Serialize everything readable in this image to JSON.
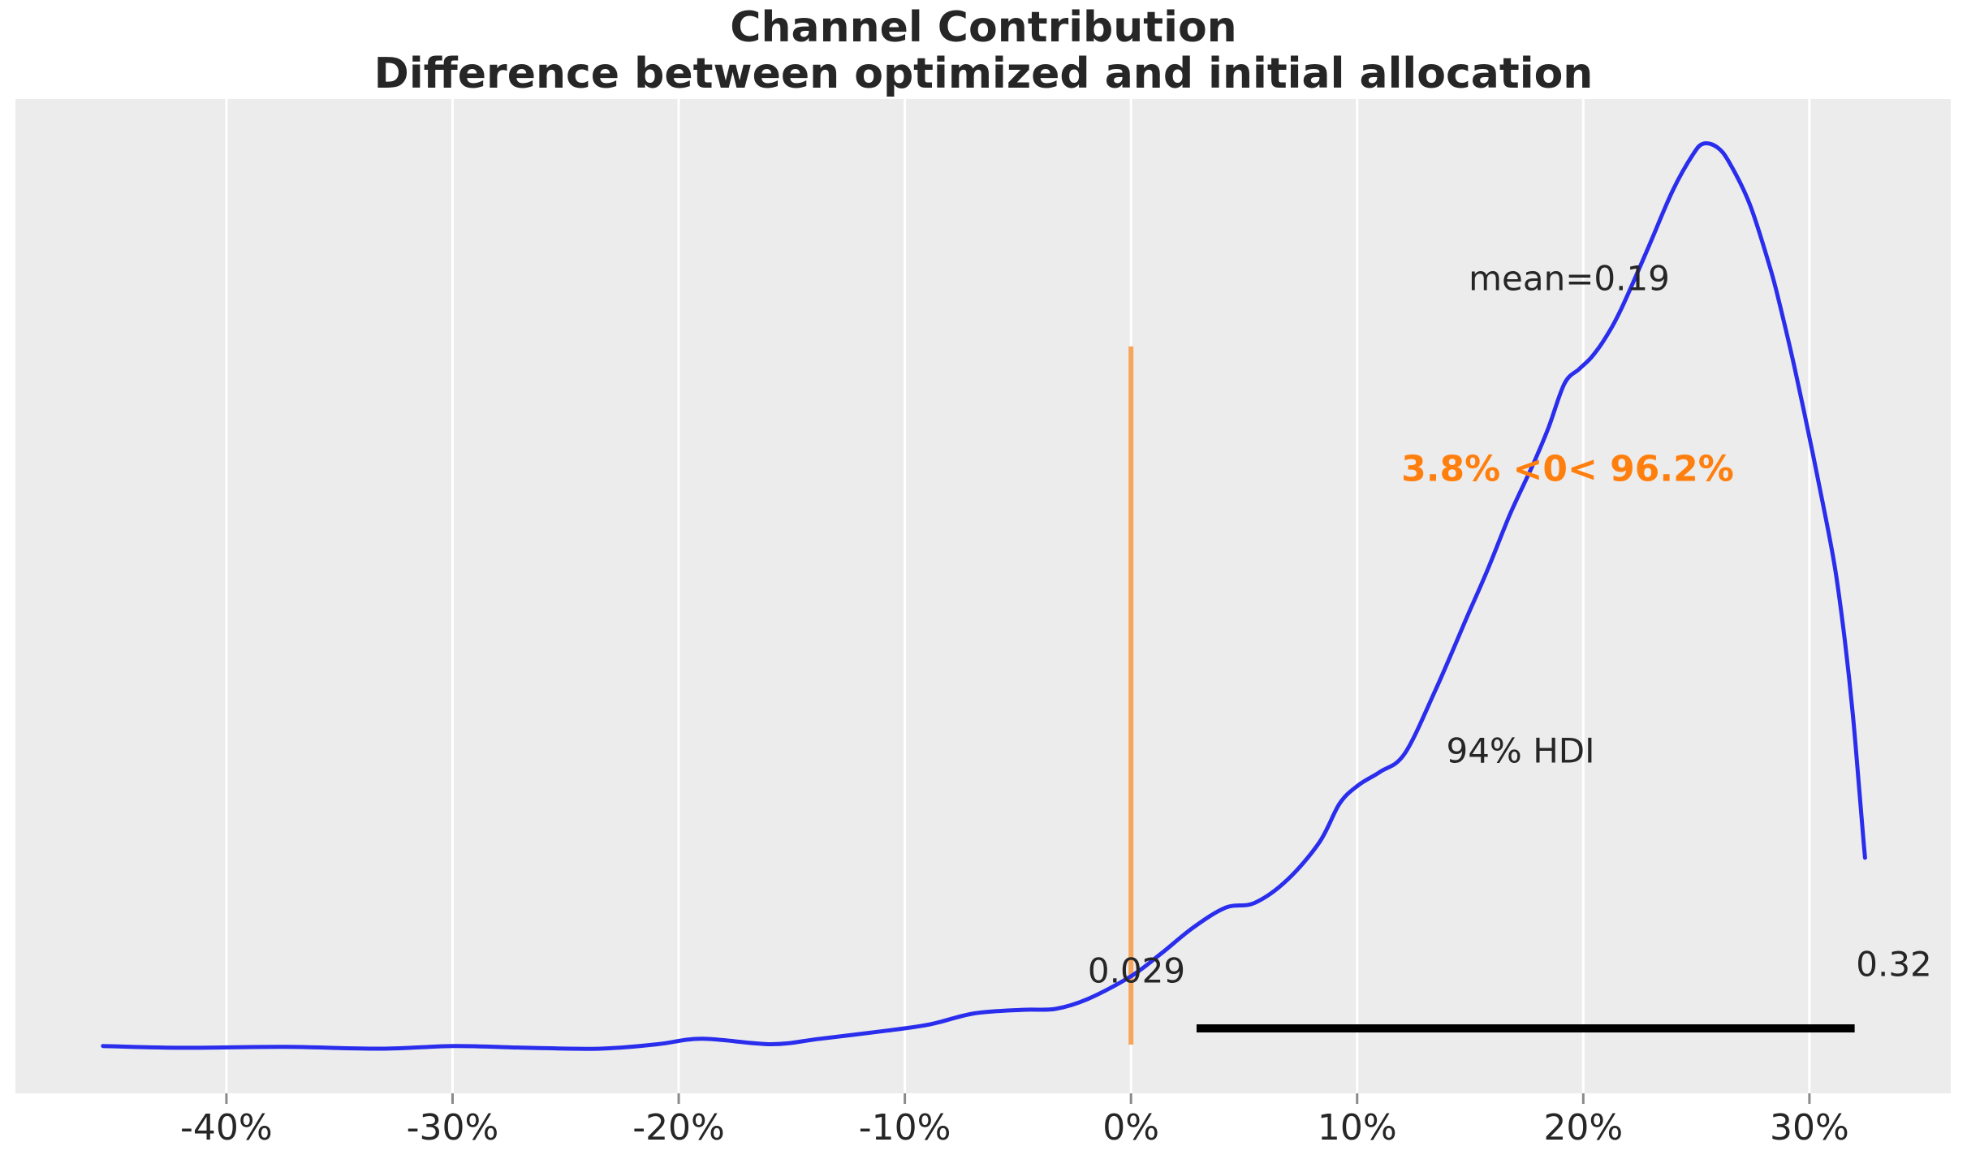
{
  "header": {
    "title": "Channel Contribution",
    "subtitle": "Difference between optimized and initial allocation"
  },
  "annotations": {
    "mean_label": "mean=0.19",
    "mean_value": 0.19,
    "ref_label": "3.8% <0< 96.2%",
    "prob_below_zero_pct": 3.8,
    "prob_above_zero_pct": 96.2,
    "ref_value": 0,
    "hdi_label": "94% HDI",
    "hdi_prob": 0.94,
    "hdi_lower": 0.029,
    "hdi_upper": 0.32,
    "hdi_lower_label": "0.029",
    "hdi_upper_label": "0.32"
  },
  "axis": {
    "ticks": [
      {
        "value": -40,
        "label": "-40%"
      },
      {
        "value": -30,
        "label": "-30%"
      },
      {
        "value": -20,
        "label": "-20%"
      },
      {
        "value": -10,
        "label": "-10%"
      },
      {
        "value": 0,
        "label": "0%"
      },
      {
        "value": 10,
        "label": "10%"
      },
      {
        "value": 20,
        "label": "20%"
      },
      {
        "value": 30,
        "label": "30%"
      }
    ]
  },
  "colors": {
    "plot_background": "#ececec",
    "grid": "#ffffff",
    "density_line": "#2a2eec",
    "reference_line": "#f8a55c",
    "reference_text": "#ff7f0e",
    "hdi_line": "#000000",
    "text": "#262626",
    "tick_mark": "#8a8a8a"
  },
  "chart_data": {
    "type": "area",
    "title": "Channel Contribution\nDifference between optimized and initial allocation",
    "xlabel": "",
    "ylabel": "",
    "legend": "none",
    "grid": "vertical-white-on-gray",
    "x_unit": "percent",
    "xlim_pct": [
      -49.33,
      36.25
    ],
    "ylim_density": [
      -0.0493,
      1.0493
    ],
    "x_tick_values_pct": [
      -40,
      -30,
      -20,
      -10,
      0,
      10,
      20,
      30
    ],
    "series": [
      {
        "name": "posterior density (KDE)",
        "x_pct": [
          -45.46,
          -42.12,
          -37.45,
          -33.14,
          -29.91,
          -26.68,
          -23.45,
          -20.93,
          -18.96,
          -15.91,
          -13.75,
          -10.77,
          -8.87,
          -6.93,
          -4.78,
          -3.34,
          -1.9,
          0.0,
          1.33,
          2.76,
          4.2,
          5.46,
          6.89,
          8.33,
          9.23,
          10.05,
          11.02,
          12.1,
          13.46,
          14.86,
          15.8,
          16.77,
          17.77,
          18.46,
          19.17,
          19.82,
          20.36,
          20.97,
          21.69,
          22.87,
          23.95,
          24.85,
          25.31,
          25.92,
          26.46,
          27.36,
          28.26,
          28.73,
          29.34,
          29.98,
          30.59,
          31.13,
          31.56,
          31.92,
          32.21,
          32.39,
          32.46
        ],
        "density_rel": [
          0.003,
          0.001,
          0.002,
          0.0,
          0.003,
          0.001,
          0.0,
          0.005,
          0.011,
          0.005,
          0.011,
          0.02,
          0.027,
          0.039,
          0.043,
          0.044,
          0.055,
          0.08,
          0.105,
          0.134,
          0.156,
          0.161,
          0.186,
          0.228,
          0.271,
          0.291,
          0.306,
          0.326,
          0.396,
          0.477,
          0.531,
          0.591,
          0.645,
          0.686,
          0.735,
          0.751,
          0.764,
          0.785,
          0.818,
          0.885,
          0.948,
          0.988,
          1.0,
          0.996,
          0.979,
          0.933,
          0.863,
          0.818,
          0.753,
          0.678,
          0.603,
          0.531,
          0.452,
          0.369,
          0.284,
          0.23,
          0.211
        ]
      }
    ],
    "annotations": {
      "mean": 0.19,
      "hdi_prob": 0.94,
      "hdi_interval": [
        0.029,
        0.32
      ],
      "ref_value": 0,
      "prob_below_ref_pct": 3.8,
      "prob_above_ref_pct": 96.2
    }
  }
}
